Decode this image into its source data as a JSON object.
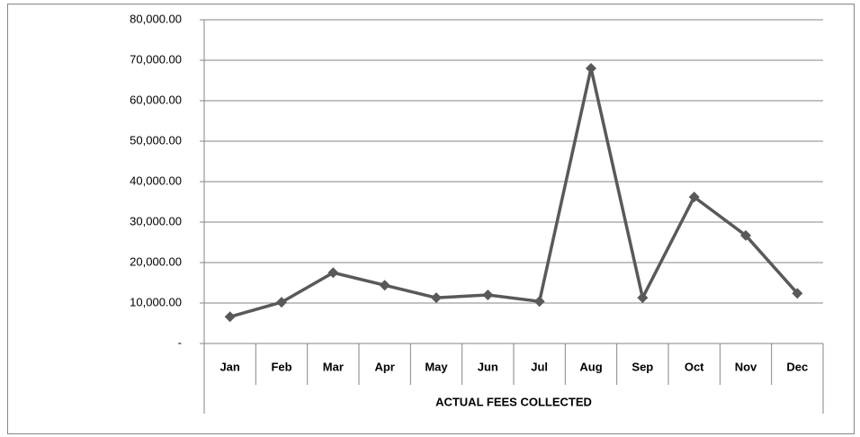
{
  "chart_data": {
    "type": "line",
    "categories": [
      "Jan",
      "Feb",
      "Mar",
      "Apr",
      "May",
      "Jun",
      "Jul",
      "Aug",
      "Sep",
      "Oct",
      "Nov",
      "Dec"
    ],
    "category_group": "ACTUAL FEES COLLECTED",
    "series": [
      {
        "color": "#595959",
        "values": [
          6600,
          10200,
          17500,
          14400,
          11300,
          12000,
          10400,
          68000,
          11300,
          36200,
          26700,
          12400
        ]
      }
    ],
    "ylim": [
      0,
      80000
    ],
    "yticks": [
      {
        "value": 0,
        "label": "-"
      },
      {
        "value": 10000,
        "label": "10,000.00"
      },
      {
        "value": 20000,
        "label": "20,000.00"
      },
      {
        "value": 30000,
        "label": "30,000.00"
      },
      {
        "value": 40000,
        "label": "40,000.00"
      },
      {
        "value": 50000,
        "label": "50,000.00"
      },
      {
        "value": 60000,
        "label": "60,000.00"
      },
      {
        "value": 70000,
        "label": "70,000.00"
      },
      {
        "value": 80000,
        "label": "80,000.00"
      }
    ],
    "grid": true
  }
}
